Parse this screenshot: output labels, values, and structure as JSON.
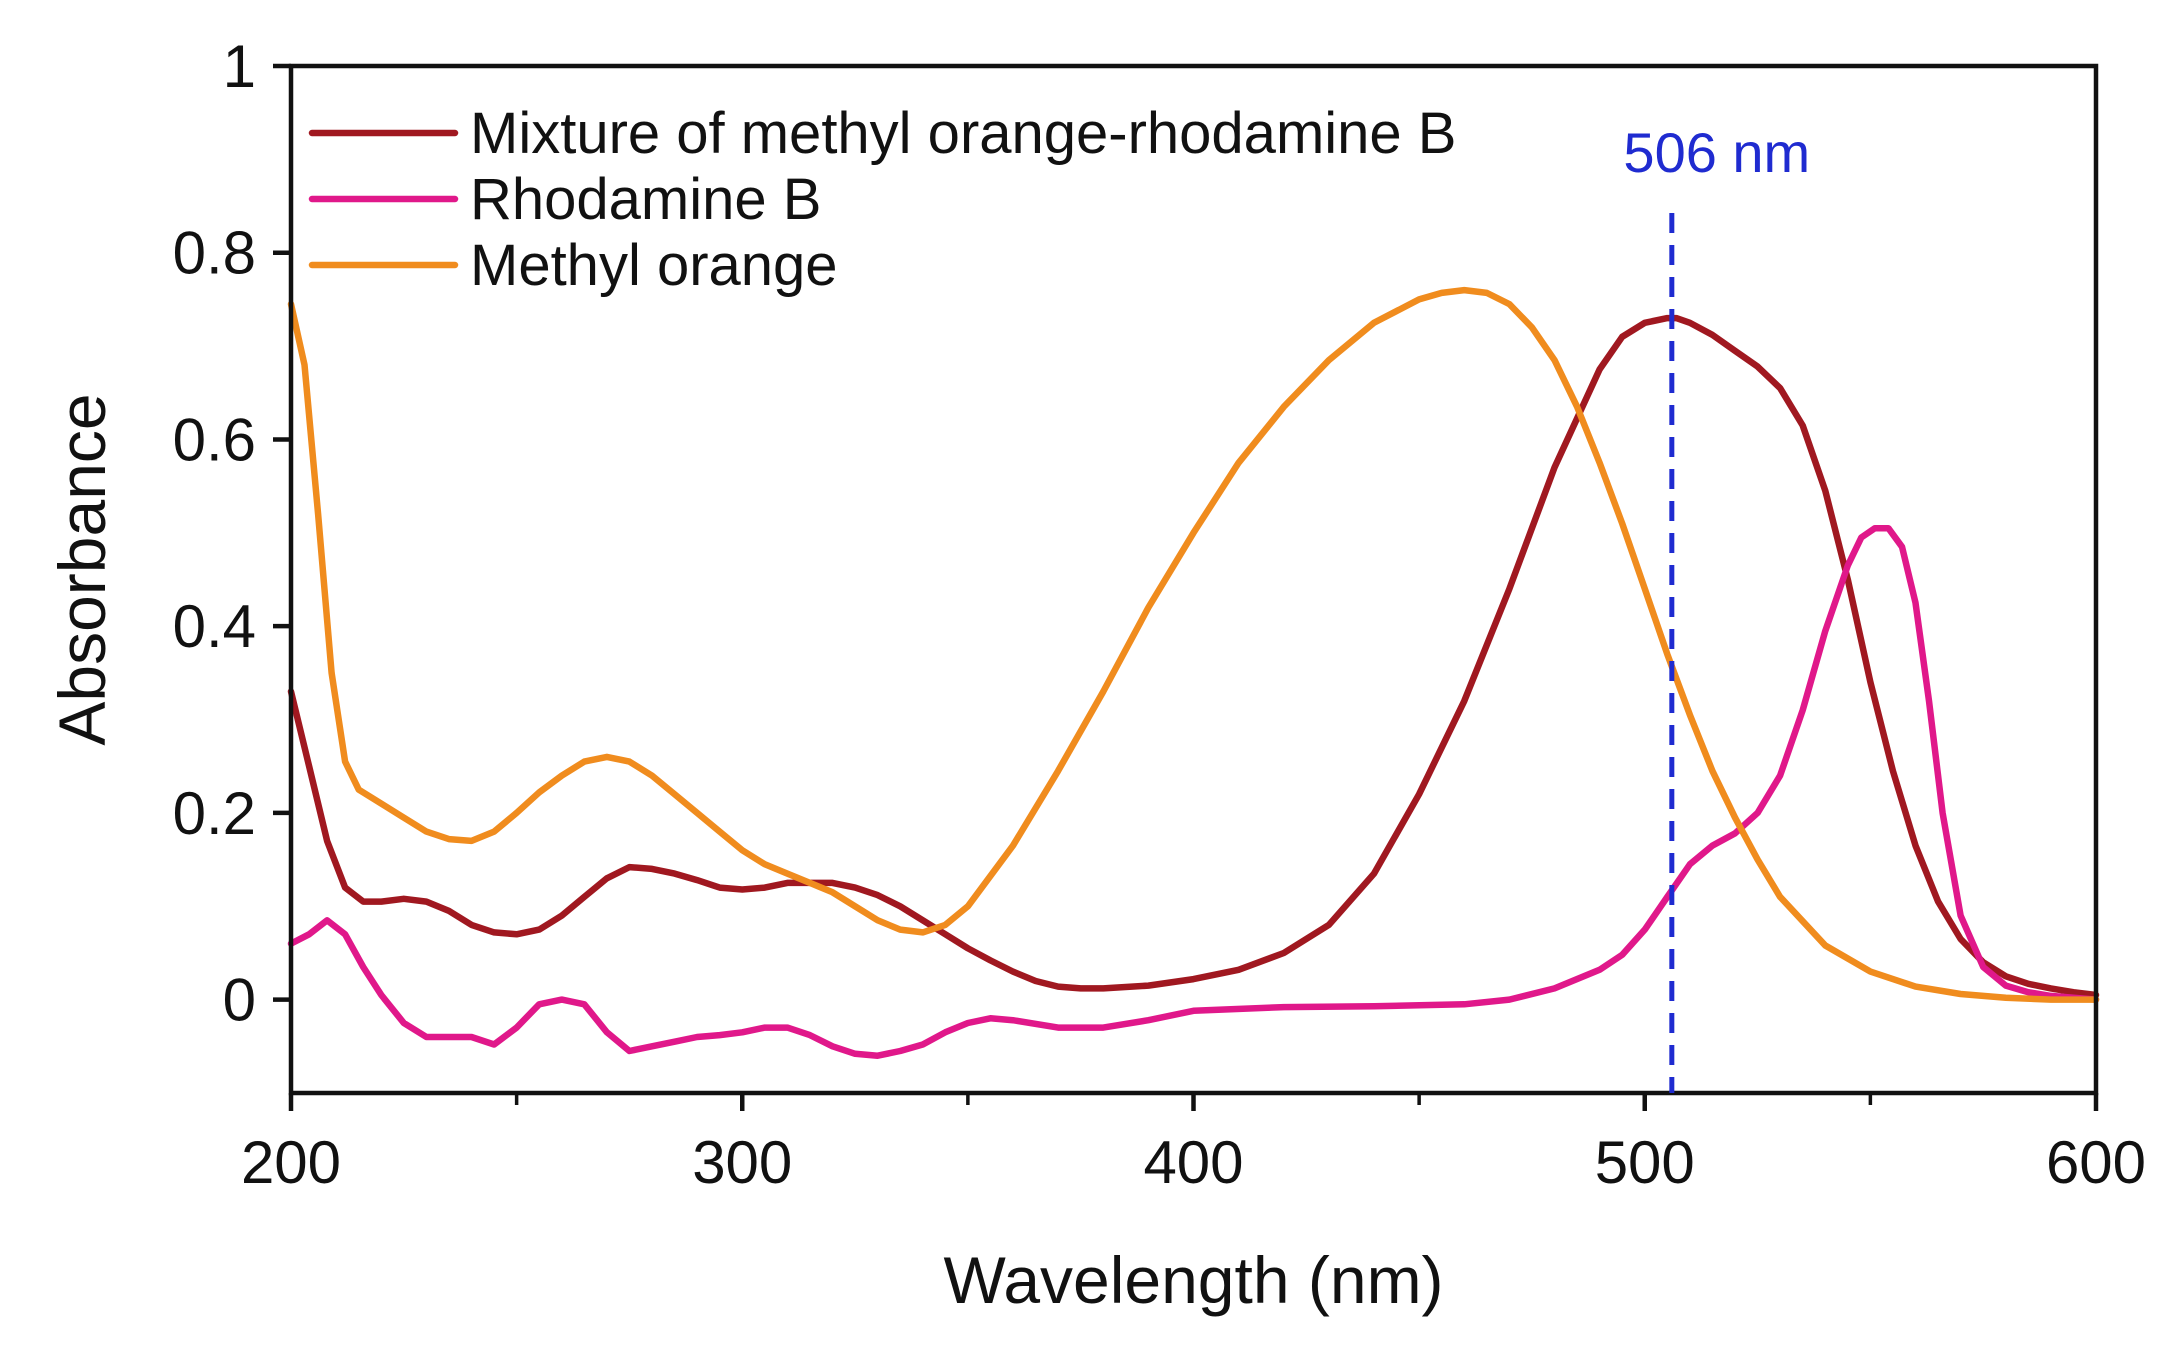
{
  "chart_data": {
    "type": "line",
    "title": "",
    "xlabel": "Wavelength (nm)",
    "ylabel": "Absorbance",
    "xlim": [
      200,
      600
    ],
    "ylim": [
      -0.1,
      1.0
    ],
    "xticks": [
      200,
      300,
      400,
      500,
      600
    ],
    "xtick_labels": [
      "200",
      "300",
      "400",
      "500",
      "600"
    ],
    "xminor": [
      250,
      350,
      450,
      550
    ],
    "yticks": [
      0,
      0.2,
      0.4,
      0.6,
      0.8,
      1
    ],
    "ytick_labels": [
      "0",
      "0.2",
      "0.4",
      "0.6",
      "0.8",
      "1"
    ],
    "grid": false,
    "legend_position": "top-left",
    "series": [
      {
        "name": "Mixture of methyl orange-rhodamine B",
        "color": "#a01820",
        "x": [
          200,
          204,
          208,
          212,
          216,
          220,
          225,
          230,
          235,
          240,
          245,
          250,
          255,
          260,
          265,
          270,
          275,
          280,
          285,
          290,
          295,
          300,
          305,
          310,
          315,
          320,
          325,
          330,
          335,
          340,
          345,
          350,
          355,
          360,
          365,
          370,
          375,
          380,
          390,
          400,
          410,
          420,
          430,
          440,
          450,
          460,
          470,
          480,
          490,
          495,
          500,
          505,
          507,
          510,
          515,
          520,
          525,
          530,
          535,
          540,
          545,
          550,
          555,
          560,
          565,
          570,
          575,
          580,
          585,
          590,
          595,
          600
        ],
        "y": [
          0.33,
          0.25,
          0.17,
          0.12,
          0.105,
          0.105,
          0.108,
          0.105,
          0.095,
          0.08,
          0.072,
          0.07,
          0.075,
          0.09,
          0.11,
          0.13,
          0.142,
          0.14,
          0.135,
          0.128,
          0.12,
          0.118,
          0.12,
          0.125,
          0.125,
          0.125,
          0.12,
          0.112,
          0.1,
          0.085,
          0.07,
          0.055,
          0.042,
          0.03,
          0.02,
          0.014,
          0.012,
          0.012,
          0.015,
          0.022,
          0.032,
          0.05,
          0.08,
          0.135,
          0.22,
          0.32,
          0.44,
          0.57,
          0.675,
          0.71,
          0.725,
          0.73,
          0.73,
          0.725,
          0.712,
          0.695,
          0.678,
          0.655,
          0.615,
          0.545,
          0.45,
          0.34,
          0.245,
          0.165,
          0.105,
          0.065,
          0.04,
          0.025,
          0.017,
          0.012,
          0.008,
          0.005
        ]
      },
      {
        "name": "Rhodamine B",
        "color": "#e0188a",
        "x": [
          200,
          204,
          208,
          212,
          216,
          220,
          225,
          230,
          235,
          240,
          245,
          250,
          255,
          260,
          265,
          270,
          275,
          280,
          285,
          290,
          295,
          300,
          305,
          310,
          315,
          320,
          325,
          330,
          335,
          340,
          345,
          350,
          355,
          360,
          370,
          380,
          390,
          400,
          420,
          440,
          460,
          470,
          480,
          490,
          495,
          500,
          505,
          510,
          515,
          520,
          525,
          530,
          535,
          540,
          545,
          548,
          551,
          554,
          557,
          560,
          563,
          566,
          570,
          575,
          580,
          585,
          590,
          595,
          600
        ],
        "y": [
          0.06,
          0.07,
          0.085,
          0.07,
          0.035,
          0.005,
          -0.025,
          -0.04,
          -0.04,
          -0.04,
          -0.048,
          -0.03,
          -0.005,
          0.0,
          -0.005,
          -0.035,
          -0.055,
          -0.05,
          -0.045,
          -0.04,
          -0.038,
          -0.035,
          -0.03,
          -0.03,
          -0.038,
          -0.05,
          -0.058,
          -0.06,
          -0.055,
          -0.048,
          -0.035,
          -0.025,
          -0.02,
          -0.022,
          -0.03,
          -0.03,
          -0.022,
          -0.012,
          -0.008,
          -0.007,
          -0.005,
          0.0,
          0.012,
          0.032,
          0.048,
          0.075,
          0.11,
          0.145,
          0.165,
          0.178,
          0.2,
          0.24,
          0.31,
          0.395,
          0.465,
          0.495,
          0.505,
          0.505,
          0.485,
          0.425,
          0.32,
          0.2,
          0.09,
          0.035,
          0.015,
          0.008,
          0.004,
          0.002,
          0.0
        ]
      },
      {
        "name": "Methyl orange",
        "color": "#f08c1e",
        "x": [
          200,
          203,
          206,
          209,
          212,
          215,
          220,
          225,
          230,
          235,
          240,
          245,
          250,
          255,
          260,
          265,
          270,
          275,
          280,
          285,
          290,
          295,
          300,
          305,
          310,
          315,
          320,
          325,
          330,
          335,
          340,
          345,
          350,
          360,
          370,
          380,
          390,
          400,
          410,
          420,
          430,
          440,
          450,
          455,
          460,
          465,
          470,
          475,
          480,
          485,
          490,
          495,
          500,
          505,
          510,
          515,
          520,
          525,
          530,
          540,
          550,
          560,
          570,
          580,
          590,
          600
        ],
        "y": [
          0.745,
          0.68,
          0.52,
          0.35,
          0.255,
          0.225,
          0.21,
          0.195,
          0.18,
          0.172,
          0.17,
          0.18,
          0.2,
          0.222,
          0.24,
          0.255,
          0.26,
          0.255,
          0.24,
          0.22,
          0.2,
          0.18,
          0.16,
          0.145,
          0.135,
          0.125,
          0.115,
          0.1,
          0.085,
          0.075,
          0.072,
          0.08,
          0.1,
          0.165,
          0.245,
          0.33,
          0.42,
          0.5,
          0.575,
          0.635,
          0.685,
          0.725,
          0.75,
          0.757,
          0.76,
          0.757,
          0.745,
          0.72,
          0.685,
          0.635,
          0.575,
          0.51,
          0.44,
          0.37,
          0.305,
          0.245,
          0.195,
          0.15,
          0.11,
          0.058,
          0.03,
          0.014,
          0.006,
          0.002,
          0.0,
          0.0
        ]
      }
    ],
    "annotations": [
      {
        "type": "vline",
        "x": 506,
        "label": "506 nm",
        "color": "#1f2bd0",
        "style": "dashed"
      }
    ]
  }
}
